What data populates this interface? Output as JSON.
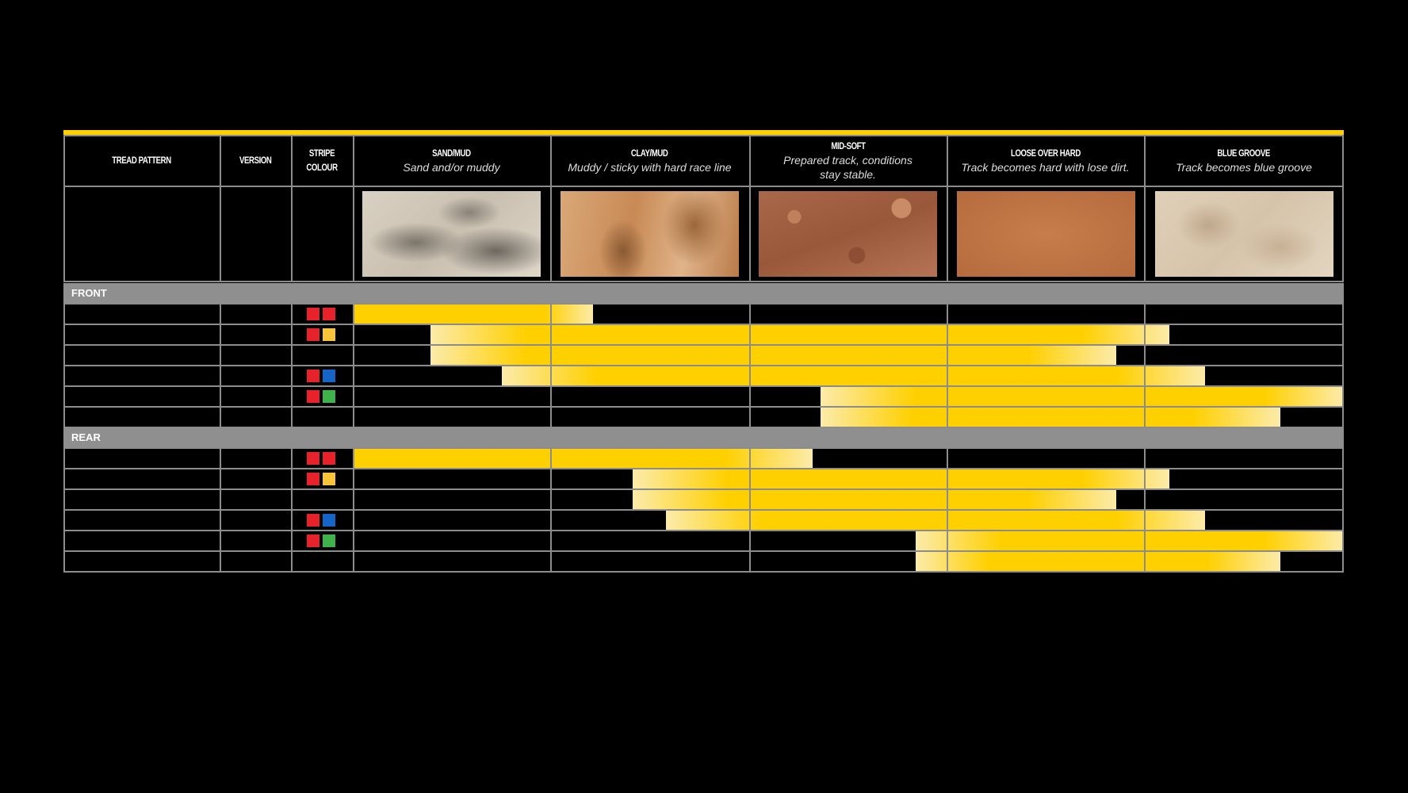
{
  "table": {
    "accent_color": "#ffd000",
    "columns": [
      {
        "title": "TREAD PATTERN",
        "subtitle": ""
      },
      {
        "title": "VERSION",
        "subtitle": ""
      },
      {
        "title": "STRIPE COLOUR",
        "subtitle": ""
      },
      {
        "title": "SAND/MUD",
        "subtitle": "Sand and/or muddy",
        "image": "sand-photo"
      },
      {
        "title": "CLAY/MUD",
        "subtitle": "Muddy / sticky with hard race line",
        "image": "clay-photo"
      },
      {
        "title": "MID-SOFT",
        "subtitle": "Prepared track, conditions stay stable.",
        "image": "mid-soft-photo"
      },
      {
        "title": "LOOSE OVER HARD",
        "subtitle": "Track becomes hard with lose dirt.",
        "image": "loose-over-hard-photo"
      },
      {
        "title": "BLUE GROOVE",
        "subtitle": "Track becomes blue groove",
        "image": "blue-groove-photo"
      }
    ],
    "stripe_colors": {
      "red": "#e8222a",
      "yellow": "#f7c43a",
      "blue": "#1565c8",
      "green": "#3fb34a"
    },
    "sections": [
      {
        "label": "FRONT",
        "rows": [
          {
            "stripes": [
              "red",
              "red"
            ],
            "suitability_range": [
              0,
              1.21
            ]
          },
          {
            "stripes": [
              "red",
              "yellow"
            ],
            "suitability_range": [
              0.39,
              4.12
            ]
          },
          {
            "stripes": [],
            "suitability_range": [
              0.39,
              3.85
            ]
          },
          {
            "stripes": [
              "red",
              "blue"
            ],
            "suitability_range": [
              0.75,
              4.3
            ]
          },
          {
            "stripes": [
              "red",
              "green"
            ],
            "suitability_range": [
              2.36,
              5
            ]
          },
          {
            "stripes": [],
            "suitability_range": [
              2.36,
              4.68
            ]
          }
        ]
      },
      {
        "label": "REAR",
        "rows": [
          {
            "stripes": [
              "red",
              "red"
            ],
            "suitability_range": [
              0,
              2.32
            ]
          },
          {
            "stripes": [
              "red",
              "yellow"
            ],
            "suitability_range": [
              1.41,
              4.12
            ]
          },
          {
            "stripes": [],
            "suitability_range": [
              1.41,
              3.85
            ]
          },
          {
            "stripes": [
              "red",
              "blue"
            ],
            "suitability_range": [
              1.58,
              4.3
            ]
          },
          {
            "stripes": [
              "red",
              "green"
            ],
            "suitability_range": [
              2.84,
              5
            ]
          },
          {
            "stripes": [],
            "suitability_range": [
              2.84,
              4.68
            ]
          }
        ]
      }
    ]
  }
}
